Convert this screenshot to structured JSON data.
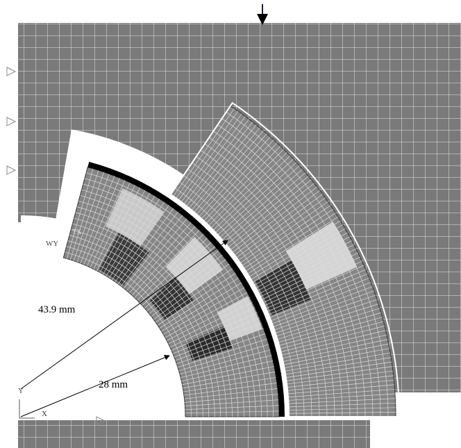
{
  "annotations": {
    "outer_radius": "43.9 mm",
    "inner_radius": "28 mm"
  },
  "axis_labels": {
    "y": "Y",
    "x": "X",
    "view": "WY",
    "triad": "TX"
  }
}
